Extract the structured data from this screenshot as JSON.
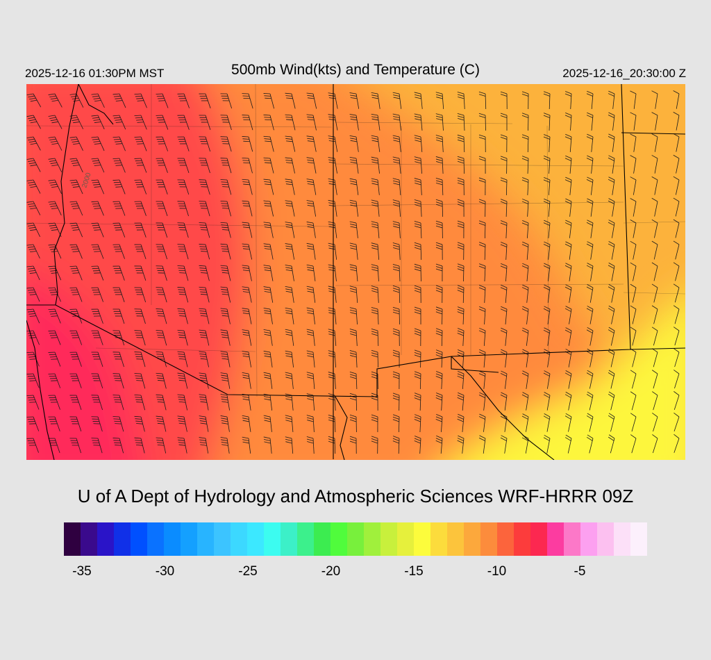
{
  "header": {
    "local_time": "2025-12-16 01:30PM MST",
    "title": "500mb Wind(kts) and Temperature (C)",
    "utc_time": "2025-12-16_20:30:00 Z"
  },
  "map": {
    "field": "500mb temperature (C) with wind barbs (kts)",
    "contour_label": "2000",
    "colors": {
      "coldest_fill": "#ff2a5a",
      "cold_fill": "#ff4848",
      "mid_fill": "#ff8a3c",
      "warm_fill": "#fcb23c",
      "warmest_fill": "#fdf63c",
      "boundary_line": "#000000",
      "barb_line": "#1a1a1a"
    }
  },
  "credit": "U of A Dept of Hydrology and Atmospheric Sciences WRF-HRRR 09Z",
  "colorbar": {
    "colors": [
      "#2f0040",
      "#3a0a8c",
      "#2a14c8",
      "#1030e8",
      "#0050ff",
      "#0a72ff",
      "#0a8cff",
      "#14a0ff",
      "#28b4ff",
      "#3cc4ff",
      "#3cd8ff",
      "#3ce8ff",
      "#3cfcf0",
      "#3cf0c8",
      "#3cf08c",
      "#3cec50",
      "#50fc3c",
      "#78f03c",
      "#a0f03c",
      "#c8f03c",
      "#e6f03c",
      "#fcfc3c",
      "#fcdc3c",
      "#fcc43c",
      "#fca83c",
      "#fc8c3c",
      "#fc643c",
      "#fc3c3c",
      "#fc2850",
      "#fc3ca0",
      "#fc78c8",
      "#fca0f0",
      "#fcc0f0",
      "#fce0f8",
      "#fcf0fc"
    ],
    "ticks": [
      {
        "label": "-35",
        "value": -35
      },
      {
        "label": "-30",
        "value": -30
      },
      {
        "label": "-25",
        "value": -25
      },
      {
        "label": "-20",
        "value": -20
      },
      {
        "label": "-15",
        "value": -15
      },
      {
        "label": "-10",
        "value": -10
      },
      {
        "label": "-5",
        "value": -5
      }
    ]
  }
}
